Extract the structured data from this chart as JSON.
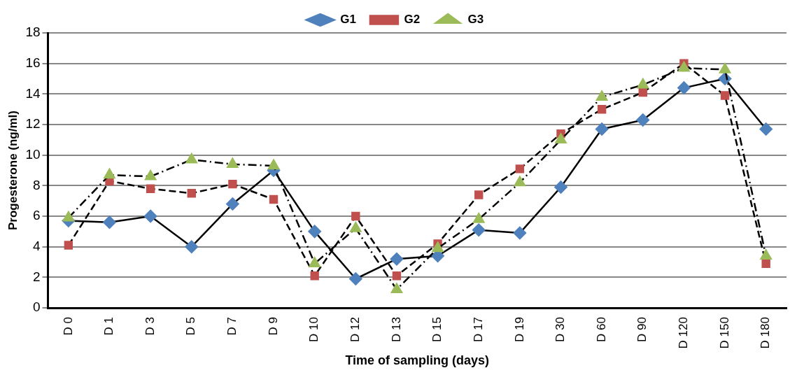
{
  "chart_data": {
    "type": "line",
    "xlabel": "Time of sampling (days)",
    "ylabel": "Progesterone (ng/ml)",
    "categories": [
      "D 0",
      "D 1",
      "D 3",
      "D 5",
      "D 7",
      "D 9",
      "D 10",
      "D 12",
      "D 13",
      "D 15",
      "D 17",
      "D 19",
      "D 30",
      "D 60",
      "D 90",
      "D 120",
      "D 150",
      "D 180"
    ],
    "series": [
      {
        "name": "G1",
        "color": "#4f81bd",
        "marker": "diamond",
        "line_style": "solid",
        "values": [
          5.7,
          5.6,
          6.0,
          4.0,
          6.8,
          9.0,
          5.0,
          1.9,
          3.2,
          3.4,
          5.1,
          4.9,
          7.9,
          11.7,
          12.3,
          14.4,
          15.0,
          11.7
        ]
      },
      {
        "name": "G2",
        "color": "#c0504d",
        "marker": "square",
        "line_style": "dashed",
        "values": [
          4.1,
          8.3,
          7.8,
          7.5,
          8.1,
          7.1,
          2.1,
          6.0,
          2.1,
          4.2,
          7.4,
          9.1,
          11.4,
          13.0,
          14.1,
          16.0,
          13.9,
          2.9
        ]
      },
      {
        "name": "G3",
        "color": "#9bbb59",
        "marker": "triangle",
        "line_style": "dashdot",
        "values": [
          5.9,
          8.7,
          8.6,
          9.7,
          9.4,
          9.3,
          2.9,
          5.2,
          1.2,
          3.9,
          5.8,
          8.2,
          11.0,
          13.8,
          14.6,
          15.7,
          15.6,
          3.4
        ]
      }
    ],
    "ylim": [
      0,
      18
    ],
    "yticks": [
      0,
      2,
      4,
      6,
      8,
      10,
      12,
      14,
      16,
      18
    ],
    "grid": "y",
    "legend": "top"
  }
}
